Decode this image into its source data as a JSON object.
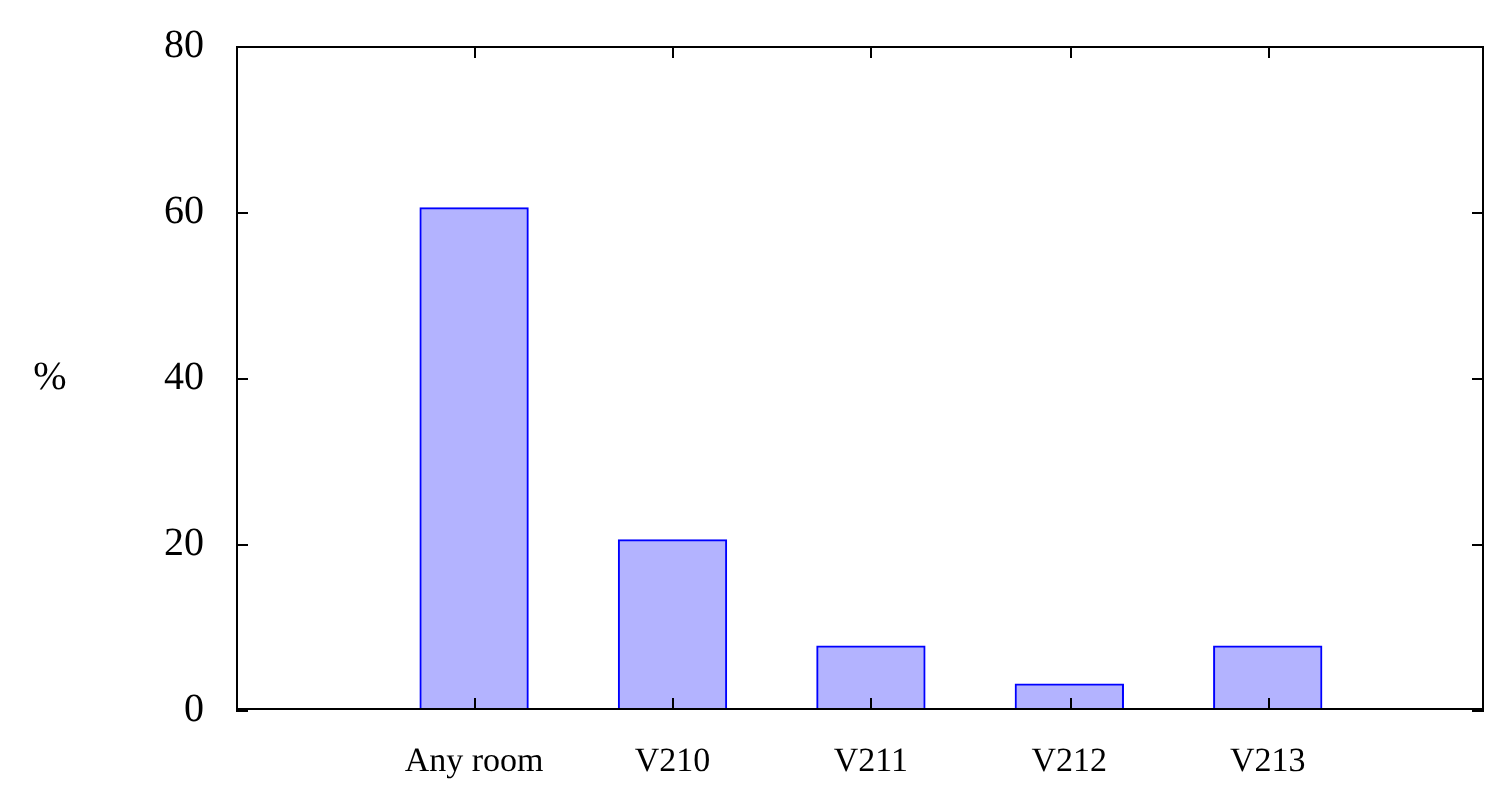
{
  "chart_data": {
    "type": "bar",
    "categories": [
      "Any room",
      "V210",
      "V211",
      "V212",
      "V213"
    ],
    "values": [
      60.5,
      20.5,
      7.7,
      3.1,
      7.7
    ],
    "color": "#b3b3ff",
    "ylabel": "%",
    "ylim": [
      0,
      80
    ],
    "yticks": [
      0,
      20,
      40,
      60,
      80
    ]
  }
}
